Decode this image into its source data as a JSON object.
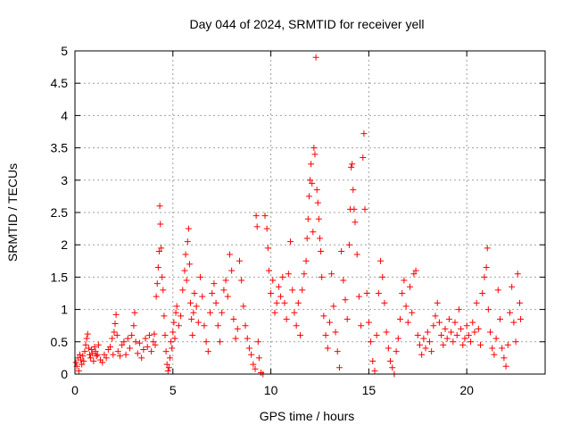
{
  "chart_data": {
    "type": "scatter",
    "title": "Day 044 of 2024, SRMTID for receiver yell",
    "xlabel": "GPS time / hours",
    "ylabel": "SRMTID / TECUs",
    "xlim": [
      0,
      24
    ],
    "ylim": [
      0,
      5
    ],
    "xticks": [
      0,
      5,
      10,
      15,
      20
    ],
    "xtick_labels": [
      "0",
      "5",
      "10",
      "15",
      "20"
    ],
    "yticks": [
      0,
      0.5,
      1,
      1.5,
      2,
      2.5,
      3,
      3.5,
      4,
      4.5,
      5
    ],
    "ytick_labels": [
      "0",
      "0.5",
      "1",
      "1.5",
      "2",
      "2.5",
      "3",
      "3.5",
      "4",
      "4.5",
      "5"
    ],
    "grid": true,
    "marker": "+",
    "series": [
      {
        "name": "SRMTID",
        "color": "#ff0000",
        "points": [
          [
            0.05,
            0.18
          ],
          [
            0.1,
            0.12
          ],
          [
            0.15,
            0.25
          ],
          [
            0.2,
            0.05
          ],
          [
            0.25,
            0.3
          ],
          [
            0.3,
            0.22
          ],
          [
            0.35,
            0.15
          ],
          [
            0.4,
            0.28
          ],
          [
            0.45,
            0.2
          ],
          [
            0.5,
            0.35
          ],
          [
            0.55,
            0.45
          ],
          [
            0.6,
            0.55
          ],
          [
            0.65,
            0.62
          ],
          [
            0.7,
            0.4
          ],
          [
            0.75,
            0.3
          ],
          [
            0.8,
            0.25
          ],
          [
            0.85,
            0.38
          ],
          [
            0.9,
            0.32
          ],
          [
            0.95,
            0.2
          ],
          [
            1.0,
            0.42
          ],
          [
            1.05,
            0.35
          ],
          [
            1.1,
            0.28
          ],
          [
            1.15,
            0.3
          ],
          [
            1.2,
            0.45
          ],
          [
            1.3,
            0.22
          ],
          [
            1.4,
            0.18
          ],
          [
            1.5,
            0.3
          ],
          [
            1.6,
            0.25
          ],
          [
            1.7,
            0.38
          ],
          [
            1.8,
            0.42
          ],
          [
            1.9,
            0.55
          ],
          [
            1.95,
            0.3
          ],
          [
            2.0,
            0.65
          ],
          [
            2.05,
            0.78
          ],
          [
            2.1,
            0.92
          ],
          [
            2.15,
            0.6
          ],
          [
            2.2,
            0.35
          ],
          [
            2.3,
            0.28
          ],
          [
            2.4,
            0.45
          ],
          [
            2.5,
            0.5
          ],
          [
            2.6,
            0.3
          ],
          [
            2.7,
            0.55
          ],
          [
            2.8,
            0.4
          ],
          [
            2.9,
            0.6
          ],
          [
            3.0,
            0.75
          ],
          [
            3.05,
            0.95
          ],
          [
            3.1,
            0.5
          ],
          [
            3.2,
            0.32
          ],
          [
            3.3,
            0.48
          ],
          [
            3.4,
            0.25
          ],
          [
            3.5,
            0.38
          ],
          [
            3.6,
            0.55
          ],
          [
            3.7,
            0.42
          ],
          [
            3.8,
            0.6
          ],
          [
            3.9,
            0.35
          ],
          [
            4.0,
            0.5
          ],
          [
            4.05,
            0.62
          ],
          [
            4.1,
            0.45
          ],
          [
            4.15,
            1.2
          ],
          [
            4.2,
            1.4
          ],
          [
            4.25,
            1.65
          ],
          [
            4.3,
            1.9
          ],
          [
            4.33,
            2.6
          ],
          [
            4.36,
            2.32
          ],
          [
            4.4,
            1.95
          ],
          [
            4.45,
            1.5
          ],
          [
            4.5,
            1.3
          ],
          [
            4.55,
            0.9
          ],
          [
            4.6,
            0.6
          ],
          [
            4.65,
            0.35
          ],
          [
            4.7,
            0.15
          ],
          [
            4.75,
            0.05
          ],
          [
            4.8,
            0.1
          ],
          [
            4.85,
            0.25
          ],
          [
            4.9,
            0.5
          ],
          [
            4.95,
            0.4
          ],
          [
            5.0,
            0.65
          ],
          [
            5.05,
            0.8
          ],
          [
            5.1,
            0.55
          ],
          [
            5.15,
            0.95
          ],
          [
            5.2,
            1.05
          ],
          [
            5.3,
            0.75
          ],
          [
            5.4,
            0.9
          ],
          [
            5.5,
            1.3
          ],
          [
            5.6,
            1.6
          ],
          [
            5.65,
            1.85
          ],
          [
            5.7,
            1.45
          ],
          [
            5.75,
            2.05
          ],
          [
            5.8,
            2.25
          ],
          [
            5.85,
            1.7
          ],
          [
            5.9,
            1.1
          ],
          [
            5.95,
            0.85
          ],
          [
            6.0,
            0.6
          ],
          [
            6.05,
            0.95
          ],
          [
            6.1,
            1.25
          ],
          [
            6.2,
            1.05
          ],
          [
            6.3,
            0.8
          ],
          [
            6.4,
            1.5
          ],
          [
            6.5,
            1.2
          ],
          [
            6.6,
            0.75
          ],
          [
            6.7,
            0.5
          ],
          [
            6.8,
            0.35
          ],
          [
            6.9,
            0.95
          ],
          [
            7.0,
            1.25
          ],
          [
            7.1,
            1.4
          ],
          [
            7.2,
            1.1
          ],
          [
            7.3,
            0.75
          ],
          [
            7.4,
            0.5
          ],
          [
            7.5,
            0.95
          ],
          [
            7.6,
            1.3
          ],
          [
            7.7,
            1.45
          ],
          [
            7.8,
            1.2
          ],
          [
            7.9,
            1.85
          ],
          [
            8.0,
            1.6
          ],
          [
            8.1,
            0.85
          ],
          [
            8.2,
            0.55
          ],
          [
            8.3,
            0.7
          ],
          [
            8.4,
            1.75
          ],
          [
            8.5,
            1.45
          ],
          [
            8.6,
            1.05
          ],
          [
            8.7,
            0.75
          ],
          [
            8.8,
            0.55
          ],
          [
            8.9,
            0.4
          ],
          [
            9.0,
            0.3
          ],
          [
            9.1,
            0.15
          ],
          [
            9.2,
            0.08
          ],
          [
            9.25,
            2.45
          ],
          [
            9.3,
            2.28
          ],
          [
            9.35,
            0.5
          ],
          [
            9.4,
            0.25
          ],
          [
            9.5,
            0.02
          ],
          [
            9.6,
            0.0
          ],
          [
            9.7,
            2.45
          ],
          [
            9.8,
            2.25
          ],
          [
            9.85,
            1.95
          ],
          [
            9.9,
            1.6
          ],
          [
            10.0,
            1.25
          ],
          [
            10.1,
            1.45
          ],
          [
            10.2,
            0.95
          ],
          [
            10.3,
            1.1
          ],
          [
            10.4,
            1.35
          ],
          [
            10.5,
            1.2
          ],
          [
            10.6,
            1.5
          ],
          [
            10.7,
            1.1
          ],
          [
            10.8,
            0.85
          ],
          [
            10.9,
            1.55
          ],
          [
            11.0,
            2.05
          ],
          [
            11.1,
            1.3
          ],
          [
            11.2,
            0.95
          ],
          [
            11.3,
            0.75
          ],
          [
            11.4,
            1.1
          ],
          [
            11.5,
            0.6
          ],
          [
            11.6,
            1.3
          ],
          [
            11.7,
            1.55
          ],
          [
            11.8,
            1.75
          ],
          [
            11.85,
            2.1
          ],
          [
            11.9,
            2.4
          ],
          [
            11.95,
            2.75
          ],
          [
            12.0,
            3.0
          ],
          [
            12.05,
            3.25
          ],
          [
            12.1,
            2.95
          ],
          [
            12.15,
            2.2
          ],
          [
            12.2,
            3.5
          ],
          [
            12.25,
            3.4
          ],
          [
            12.3,
            4.9
          ],
          [
            12.35,
            2.85
          ],
          [
            12.4,
            2.65
          ],
          [
            12.45,
            2.4
          ],
          [
            12.5,
            2.1
          ],
          [
            12.55,
            1.9
          ],
          [
            12.6,
            1.5
          ],
          [
            12.7,
            0.9
          ],
          [
            12.8,
            0.6
          ],
          [
            12.9,
            0.4
          ],
          [
            13.0,
            0.8
          ],
          [
            13.1,
            1.55
          ],
          [
            13.2,
            1.05
          ],
          [
            13.3,
            0.65
          ],
          [
            13.4,
            0.35
          ],
          [
            13.5,
            0.1
          ],
          [
            13.6,
            1.9
          ],
          [
            13.7,
            1.45
          ],
          [
            13.8,
            1.15
          ],
          [
            13.9,
            0.85
          ],
          [
            14.0,
            2.0
          ],
          [
            14.05,
            2.55
          ],
          [
            14.1,
            3.2
          ],
          [
            14.15,
            3.25
          ],
          [
            14.2,
            2.85
          ],
          [
            14.25,
            2.55
          ],
          [
            14.3,
            2.35
          ],
          [
            14.4,
            1.85
          ],
          [
            14.5,
            1.2
          ],
          [
            14.6,
            0.75
          ],
          [
            14.7,
            3.35
          ],
          [
            14.75,
            3.72
          ],
          [
            14.8,
            2.55
          ],
          [
            14.9,
            1.25
          ],
          [
            15.0,
            0.8
          ],
          [
            15.1,
            0.5
          ],
          [
            15.2,
            0.2
          ],
          [
            15.3,
            0.05
          ],
          [
            15.4,
            0.6
          ],
          [
            15.5,
            1.25
          ],
          [
            15.6,
            1.75
          ],
          [
            15.7,
            1.5
          ],
          [
            15.8,
            1.1
          ],
          [
            15.9,
            0.65
          ],
          [
            16.0,
            0.4
          ],
          [
            16.1,
            0.2
          ],
          [
            16.2,
            0.1
          ],
          [
            16.3,
            0.0
          ],
          [
            16.4,
            0.35
          ],
          [
            16.5,
            0.55
          ],
          [
            16.6,
            0.85
          ],
          [
            16.7,
            1.25
          ],
          [
            16.8,
            1.45
          ],
          [
            16.9,
            1.05
          ],
          [
            17.0,
            0.8
          ],
          [
            17.1,
            1.35
          ],
          [
            17.2,
            0.95
          ],
          [
            17.3,
            1.55
          ],
          [
            17.4,
            1.6
          ],
          [
            17.5,
            0.6
          ],
          [
            17.6,
            0.45
          ],
          [
            17.7,
            0.3
          ],
          [
            17.8,
            0.55
          ],
          [
            17.9,
            0.4
          ],
          [
            18.0,
            0.65
          ],
          [
            18.1,
            0.5
          ],
          [
            18.2,
            0.35
          ],
          [
            18.3,
            0.75
          ],
          [
            18.4,
            0.9
          ],
          [
            18.5,
            1.1
          ],
          [
            18.6,
            0.8
          ],
          [
            18.7,
            0.6
          ],
          [
            18.8,
            0.45
          ],
          [
            18.9,
            0.7
          ],
          [
            19.0,
            0.55
          ],
          [
            19.1,
            0.85
          ],
          [
            19.2,
            0.65
          ],
          [
            19.3,
            0.5
          ],
          [
            19.4,
            0.8
          ],
          [
            19.5,
            0.6
          ],
          [
            19.6,
            1.0
          ],
          [
            19.7,
            0.7
          ],
          [
            19.8,
            0.45
          ],
          [
            19.9,
            0.55
          ],
          [
            20.0,
            0.75
          ],
          [
            20.1,
            0.6
          ],
          [
            20.2,
            0.5
          ],
          [
            20.3,
            0.8
          ],
          [
            20.4,
            0.65
          ],
          [
            20.5,
            1.1
          ],
          [
            20.6,
            0.7
          ],
          [
            20.7,
            0.45
          ],
          [
            20.8,
            1.25
          ],
          [
            20.9,
            1.5
          ],
          [
            21.0,
            1.65
          ],
          [
            21.05,
            1.95
          ],
          [
            21.1,
            1.0
          ],
          [
            21.2,
            0.65
          ],
          [
            21.3,
            0.4
          ],
          [
            21.4,
            0.3
          ],
          [
            21.5,
            0.55
          ],
          [
            21.6,
            1.3
          ],
          [
            21.7,
            0.85
          ],
          [
            21.8,
            0.4
          ],
          [
            21.9,
            0.25
          ],
          [
            22.0,
            0.12
          ],
          [
            22.1,
            0.45
          ],
          [
            22.2,
            0.95
          ],
          [
            22.3,
            1.35
          ],
          [
            22.4,
            0.8
          ],
          [
            22.5,
            0.5
          ],
          [
            22.6,
            1.55
          ],
          [
            22.7,
            1.1
          ],
          [
            22.75,
            0.85
          ]
        ]
      }
    ]
  }
}
